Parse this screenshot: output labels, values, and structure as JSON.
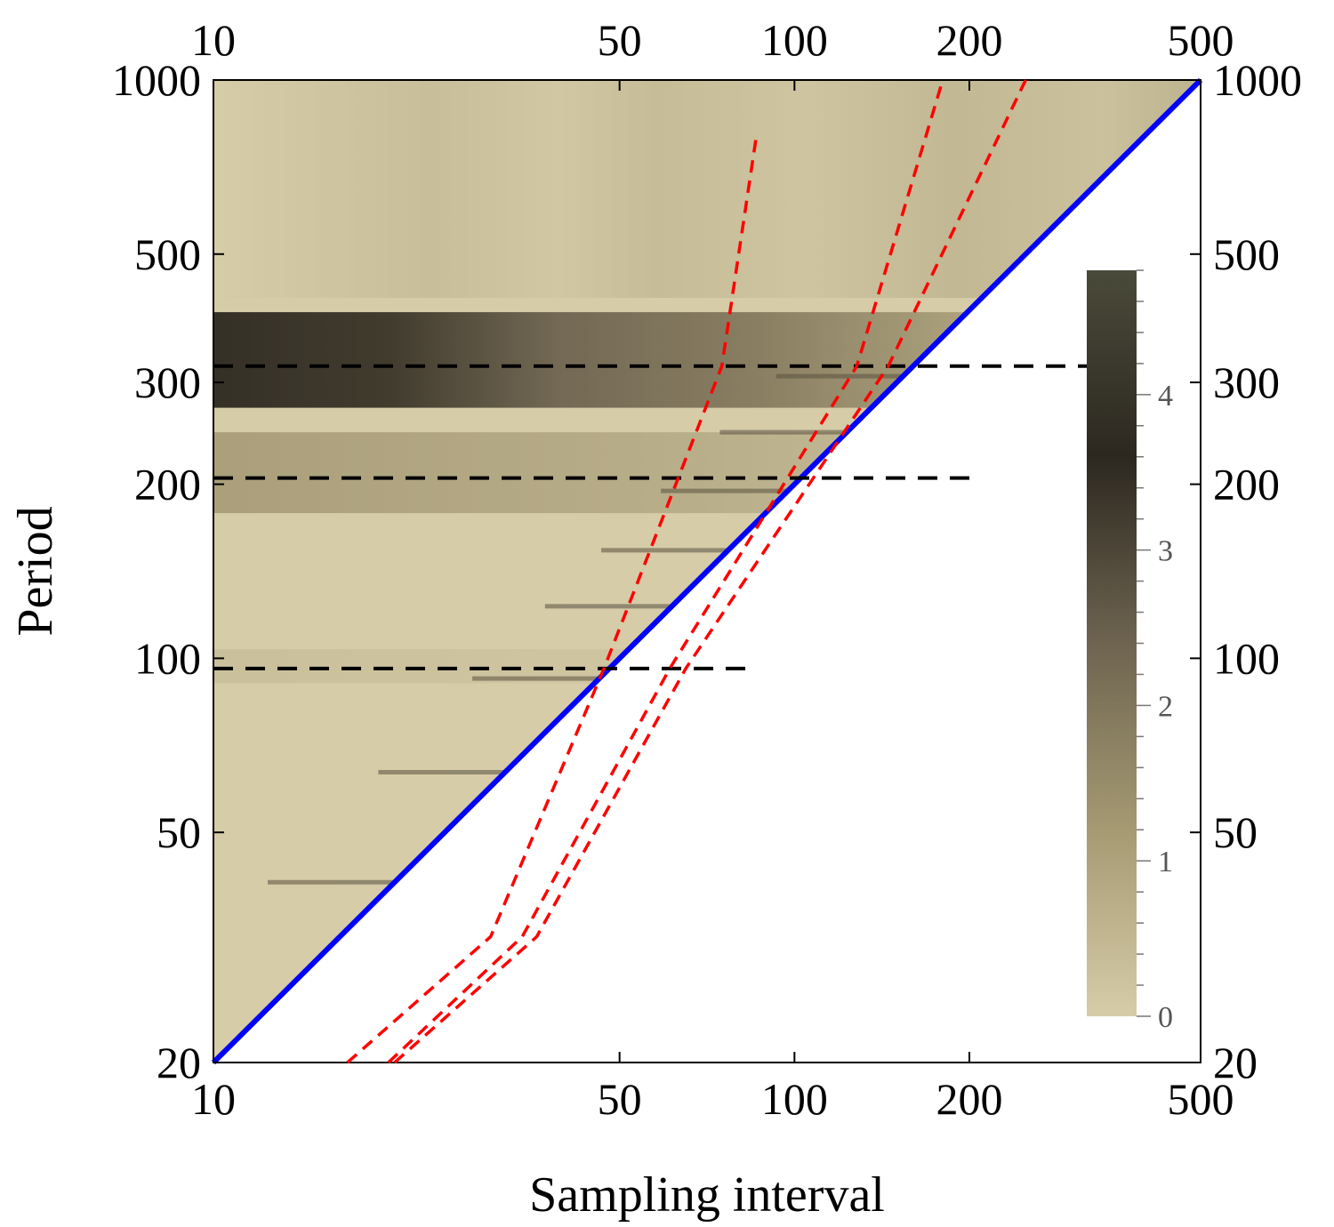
{
  "chart_data": {
    "type": "heatmap",
    "title": "",
    "xlabel": "Sampling interval",
    "ylabel": "Period",
    "xscale": "log",
    "yscale": "log",
    "xlim": [
      10,
      500
    ],
    "ylim": [
      20,
      1000
    ],
    "x_ticks": [
      10,
      50,
      100,
      200,
      500
    ],
    "y_ticks": [
      20,
      50,
      100,
      200,
      300,
      500,
      1000
    ],
    "x_tick_labels": [
      "10",
      "50",
      "100",
      "200",
      "500"
    ],
    "y_tick_labels": [
      "20",
      "50",
      "100",
      "200",
      "300",
      "500",
      "1000"
    ],
    "grid": false,
    "valid_region": "period >= 2 × sampling interval",
    "color_scale": {
      "min": 0,
      "max": 4.8,
      "ticks": [
        0,
        1,
        2,
        3,
        4
      ],
      "tick_labels": [
        "0",
        "1",
        "2",
        "3",
        "4"
      ],
      "colors": [
        "#d6cca8",
        "#a59a72",
        "#6e6450",
        "#2c2820",
        "#4a4a3a"
      ],
      "placement": "inside-right"
    },
    "horizontal_bands": [
      {
        "period": 320,
        "intensity": 4.2
      },
      {
        "period": 205,
        "intensity": 1.6
      },
      {
        "period": 96,
        "intensity": 0.6
      }
    ],
    "reference_lines": [
      {
        "style": "solid",
        "color": "#0000ff",
        "points": [
          [
            10,
            20
          ],
          [
            500,
            1000
          ]
        ]
      },
      {
        "style": "dashed",
        "color": "#000000",
        "points": [
          [
            10,
            320
          ],
          [
            320,
            320
          ]
        ]
      },
      {
        "style": "dashed",
        "color": "#000000",
        "points": [
          [
            10,
            205
          ],
          [
            200,
            205
          ]
        ]
      },
      {
        "style": "dashed",
        "color": "#000000",
        "points": [
          [
            10,
            96
          ],
          [
            86,
            96
          ]
        ]
      },
      {
        "style": "dashed",
        "color": "#ff0000",
        "points": [
          [
            17,
            20
          ],
          [
            30,
            33
          ],
          [
            47,
            96
          ],
          [
            75,
            320
          ],
          [
            86,
            800
          ]
        ]
      },
      {
        "style": "dashed",
        "color": "#ff0000",
        "points": [
          [
            20,
            20
          ],
          [
            34,
            33
          ],
          [
            61,
            96
          ],
          [
            128,
            320
          ],
          [
            180,
            1000
          ]
        ]
      },
      {
        "style": "dashed",
        "color": "#ff0000",
        "points": [
          [
            20.5,
            20
          ],
          [
            36,
            33
          ],
          [
            65,
            96
          ],
          [
            145,
            320
          ],
          [
            250,
            1000
          ]
        ]
      }
    ]
  }
}
